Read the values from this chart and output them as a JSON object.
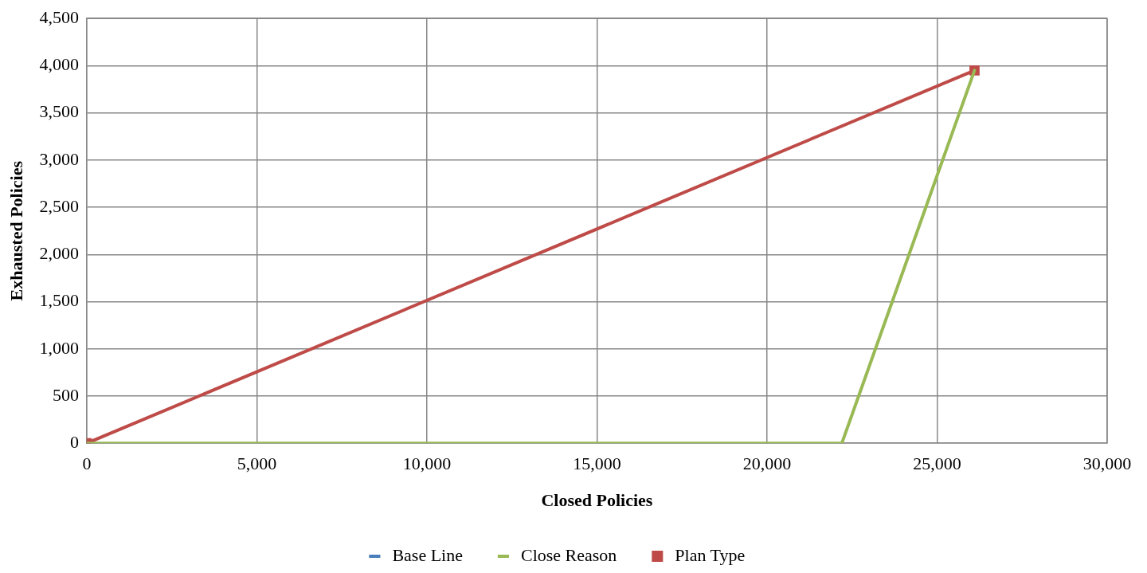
{
  "chart_data": {
    "type": "line",
    "xlabel": "Closed Policies",
    "ylabel": "Exhausted Policies",
    "xlim": [
      0,
      30000
    ],
    "xticks": [
      {
        "value": 0,
        "label": "0"
      },
      {
        "value": 5000,
        "label": "5,000"
      },
      {
        "value": 10000,
        "label": "10,000"
      },
      {
        "value": 15000,
        "label": "15,000"
      },
      {
        "value": 20000,
        "label": "20,000"
      },
      {
        "value": 25000,
        "label": "25,000"
      },
      {
        "value": 30000,
        "label": "30,000"
      }
    ],
    "ylim": [
      0,
      4500
    ],
    "yticks": [
      {
        "value": 0,
        "label": "0"
      },
      {
        "value": 500,
        "label": "500"
      },
      {
        "value": 1000,
        "label": "1,000"
      },
      {
        "value": 1500,
        "label": "1,500"
      },
      {
        "value": 2000,
        "label": "2,000"
      },
      {
        "value": 2500,
        "label": "2,500"
      },
      {
        "value": 3000,
        "label": "3,000"
      },
      {
        "value": 3500,
        "label": "3,500"
      },
      {
        "value": 4000,
        "label": "4,000"
      },
      {
        "value": 4500,
        "label": "4,500"
      }
    ],
    "grid": true,
    "legend": "bottom",
    "series": [
      {
        "name": "Base Line",
        "color": "#4a7ebb",
        "marker": "none"
      },
      {
        "name": "Close Reason",
        "color": "#98b954",
        "x": [
          0,
          22200,
          26100
        ],
        "values": [
          0,
          0,
          3950
        ],
        "marker": "none"
      },
      {
        "name": "Plan Type",
        "color": "#be4b48",
        "x": [
          0,
          26100
        ],
        "values": [
          0,
          3950
        ],
        "marker": "square"
      }
    ]
  }
}
